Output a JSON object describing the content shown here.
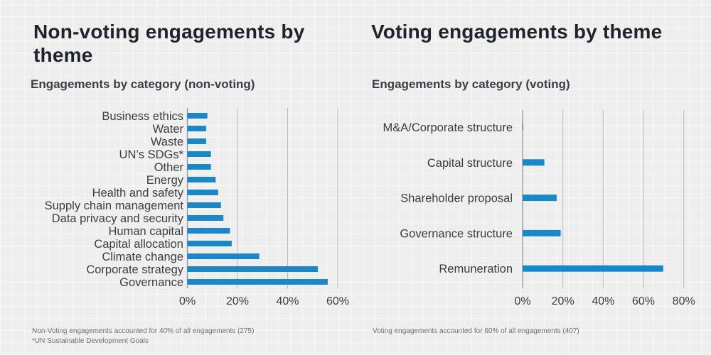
{
  "panels": [
    {
      "title_line1": "Non-voting engagements by",
      "title_line2": "theme"
    },
    {
      "title_line1": "Voting engagements by theme",
      "title_line2": ""
    }
  ],
  "chart_data": [
    {
      "type": "bar",
      "orientation": "horizontal",
      "title": "Engagements by category (non-voting)",
      "categories": [
        "Business ethics",
        "Water",
        "Waste",
        "UN’s SDGs*",
        "Other",
        "Energy",
        "Health and safety",
        "Supply chain management",
        "Data privacy and security",
        "Human capital",
        "Capital allocation",
        "Climate change",
        "Corporate strategy",
        "Governance"
      ],
      "values": [
        8.0,
        7.5,
        7.5,
        9.4,
        9.4,
        11.3,
        12.3,
        13.4,
        14.4,
        17.0,
        17.7,
        28.7,
        52.1,
        56.0
      ],
      "unit": "%",
      "xlim": [
        0,
        60
      ],
      "x_ticks": [
        "0%",
        "20%",
        "40%",
        "60%"
      ],
      "grid": true,
      "bar_color": "#1a87c9",
      "footnotes": [
        "Non-Voting engagements accounted for 40% of all engagements (275)",
        "*UN Sustainable Development Goals"
      ]
    },
    {
      "type": "bar",
      "orientation": "horizontal",
      "title": "Engagements by category (voting)",
      "categories": [
        "M&A/Corporate structure",
        "Capital structure",
        "Shareholder proposal",
        "Governance structure",
        "Remuneration"
      ],
      "values": [
        0.3,
        10.8,
        16.9,
        18.9,
        69.8
      ],
      "unit": "%",
      "xlim": [
        0,
        80
      ],
      "x_ticks": [
        "0%",
        "20%",
        "40%",
        "60%",
        "80%"
      ],
      "grid": true,
      "bar_color": "#1a87c9",
      "footnotes": [
        "Voting engagements accounted for 60% of all engagements (407)"
      ]
    }
  ]
}
